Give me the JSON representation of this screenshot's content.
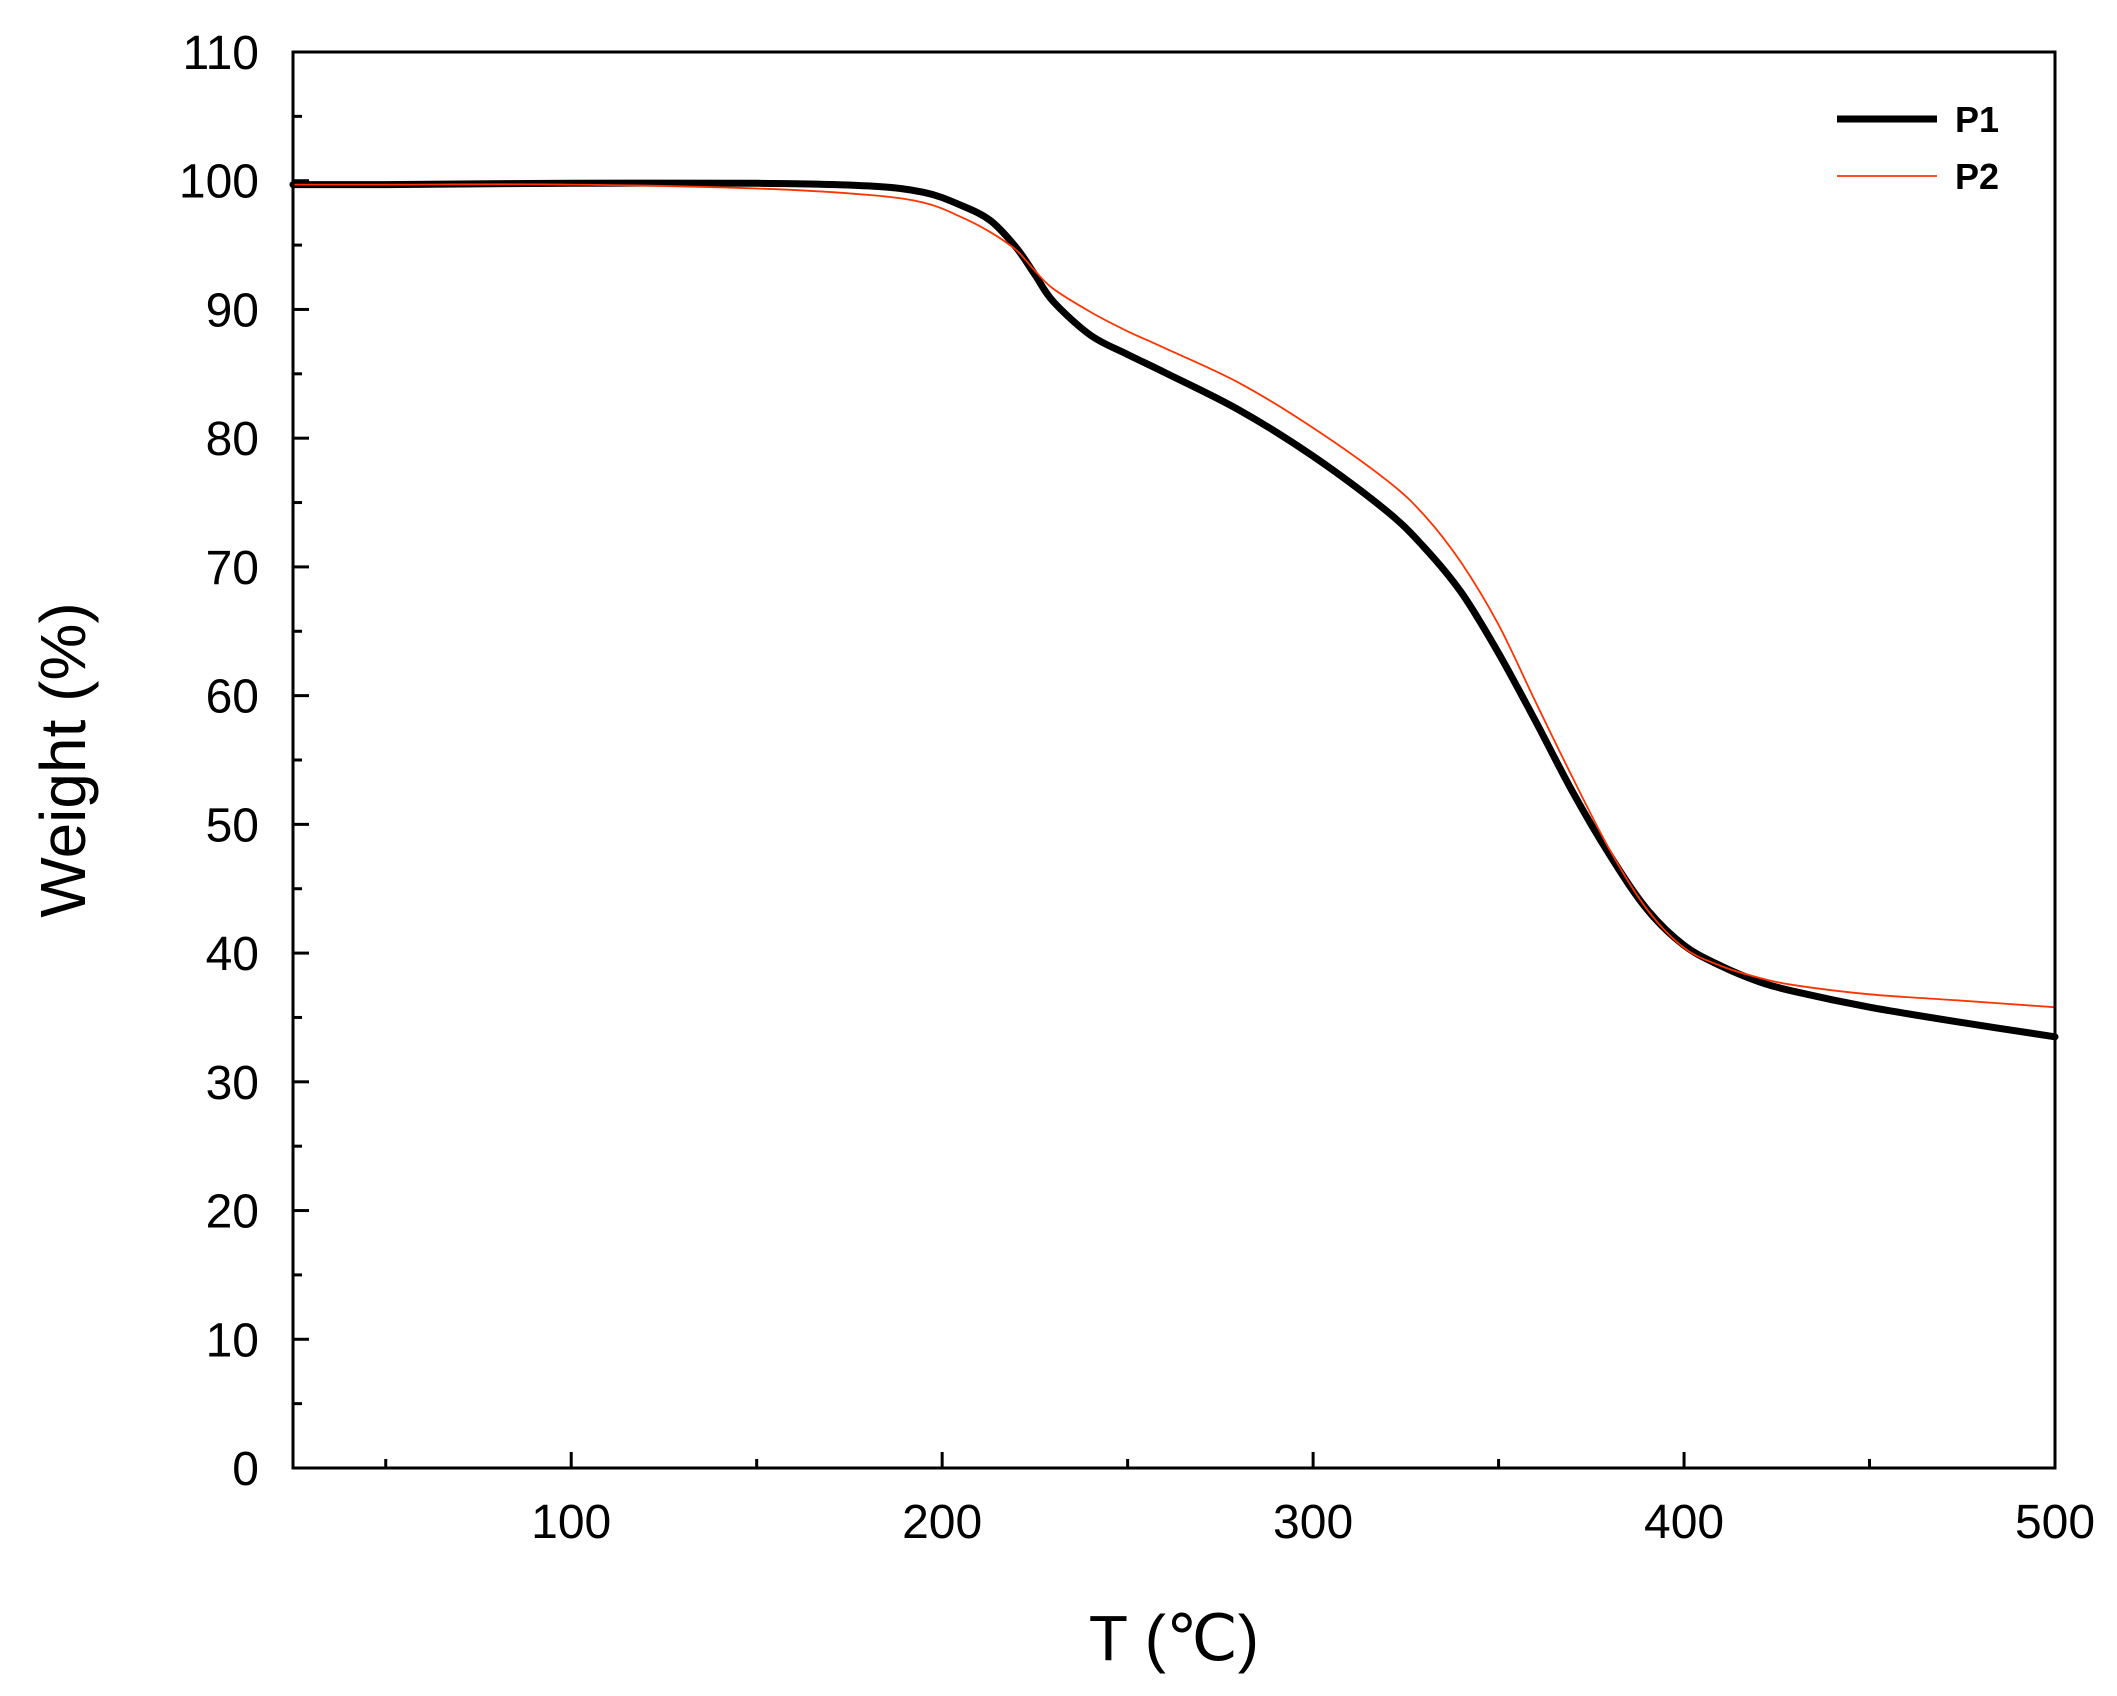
{
  "chart_data": {
    "type": "line",
    "title": "",
    "xlabel": "T (℃)",
    "ylabel": "Weight (%)",
    "xlim": [
      25,
      500
    ],
    "ylim": [
      0,
      110
    ],
    "x_ticks": [
      100,
      200,
      300,
      400,
      500
    ],
    "y_ticks": [
      0,
      10,
      20,
      30,
      40,
      50,
      60,
      70,
      80,
      90,
      100,
      110
    ],
    "x_minor_step": 50,
    "y_minor_step": 5,
    "grid": false,
    "legend_position": "top-right",
    "series": [
      {
        "name": "P1",
        "color": "#000000",
        "style": "thick",
        "x": [
          25,
          50,
          100,
          150,
          180,
          195,
          205,
          213,
          220,
          225,
          230,
          240,
          250,
          260,
          280,
          300,
          320,
          330,
          340,
          350,
          360,
          370,
          380,
          390,
          400,
          410,
          420,
          430,
          450,
          475,
          500
        ],
        "y": [
          99.7,
          99.7,
          99.8,
          99.8,
          99.6,
          99.1,
          98.1,
          96.9,
          94.8,
          92.7,
          90.6,
          88.0,
          86.5,
          85.1,
          82.2,
          78.6,
          74.3,
          71.5,
          68.0,
          63.3,
          58.0,
          52.5,
          47.6,
          43.4,
          40.6,
          39.0,
          37.8,
          37.0,
          35.8,
          34.6,
          33.5
        ]
      },
      {
        "name": "P2",
        "color": "#ff3300",
        "style": "thin",
        "x": [
          25,
          50,
          100,
          150,
          180,
          195,
          205,
          213,
          220,
          225,
          230,
          240,
          250,
          260,
          280,
          300,
          320,
          330,
          340,
          350,
          360,
          370,
          380,
          390,
          400,
          410,
          420,
          430,
          450,
          475,
          500
        ],
        "y": [
          99.7,
          99.7,
          99.7,
          99.4,
          98.9,
          98.3,
          97.2,
          96.0,
          94.6,
          93.0,
          91.6,
          89.8,
          88.3,
          87.0,
          84.3,
          80.8,
          76.7,
          74.0,
          70.3,
          65.5,
          59.5,
          53.6,
          48.0,
          43.4,
          40.4,
          39.0,
          38.1,
          37.5,
          36.8,
          36.3,
          35.8
        ]
      }
    ]
  }
}
